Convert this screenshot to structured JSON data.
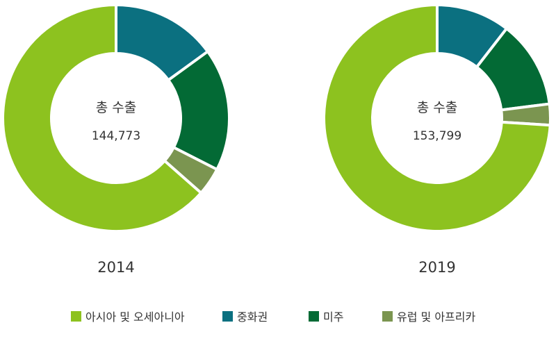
{
  "chart_data": [
    {
      "type": "pie",
      "donut": true,
      "title": "2014",
      "center_title": "총 수출",
      "center_value": "144,773",
      "categories": [
        "아시아 및 오세아니아",
        "중화권",
        "미주",
        "유럽 및 아프리카"
      ],
      "values": [
        63.5,
        15.0,
        17.5,
        4.0
      ],
      "colors": [
        "#8dc21f",
        "#0b7080",
        "#036a35",
        "#7b9550"
      ]
    },
    {
      "type": "pie",
      "donut": true,
      "title": "2019",
      "center_title": "총 수출",
      "center_value": "153,799",
      "categories": [
        "아시아 및 오세아니아",
        "중화권",
        "미주",
        "유럽 및 아프리카"
      ],
      "values": [
        74.0,
        10.5,
        12.5,
        3.0
      ],
      "colors": [
        "#8dc21f",
        "#0b7080",
        "#036a35",
        "#7b9550"
      ]
    }
  ],
  "legend": {
    "placement": "bottom",
    "items": [
      {
        "label": "아시아 및 오세아니아",
        "color": "#8dc21f"
      },
      {
        "label": "중화권",
        "color": "#0b7080"
      },
      {
        "label": "미주",
        "color": "#036a35"
      },
      {
        "label": "유럽 및 아프리카",
        "color": "#7b9550"
      }
    ]
  }
}
